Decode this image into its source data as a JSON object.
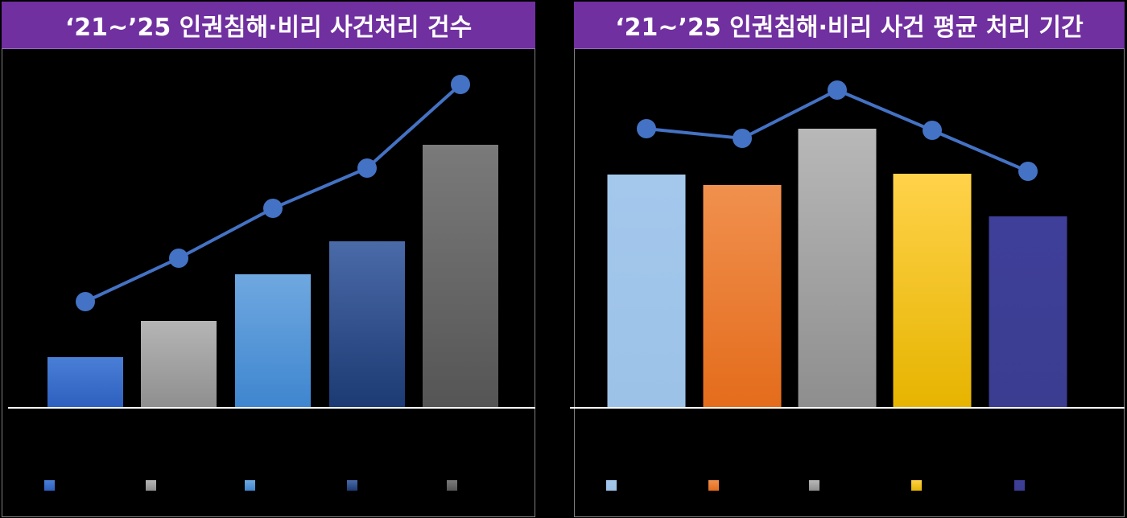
{
  "chart_data": [
    {
      "type": "bar+line",
      "title": "‘21~’25 인권침해·비리 사건처리 건수",
      "categories": [
        "",
        "",
        "",
        "",
        ""
      ],
      "bar_values": [
        62,
        107,
        165,
        206,
        326
      ],
      "line_values": [
        131,
        185,
        247,
        297,
        401
      ],
      "bar_colors": [
        [
          "#4a7fd6",
          "#2e5fbf"
        ],
        [
          "#b5b5b5",
          "#8f8f8f"
        ],
        [
          "#6fa8e0",
          "#3f86cf"
        ],
        [
          "#4a6aa8",
          "#1c3a73"
        ],
        [
          "#7a7a7a",
          "#555555"
        ]
      ],
      "line_color": "#4472c4",
      "legend_position": "bottom",
      "grid": false
    },
    {
      "type": "bar+line",
      "title": "‘21~’25 인권침해·비리 사건 평균 처리 기간",
      "categories": [
        "",
        "",
        "",
        "",
        ""
      ],
      "bar_values": [
        289,
        276,
        346,
        290,
        237
      ],
      "line_values": [
        346,
        334,
        394,
        344,
        293
      ],
      "bar_colors": [
        [
          "#a4c8ec",
          "#9cc2e8"
        ],
        [
          "#f0904e",
          "#e46c1c"
        ],
        [
          "#b8b8b8",
          "#8e8e8e"
        ],
        [
          "#ffd24a",
          "#e6b400"
        ],
        [
          "#3f3f9a",
          "#3a3d90"
        ]
      ],
      "line_color": "#4472c4",
      "legend_position": "bottom",
      "grid": false
    }
  ]
}
